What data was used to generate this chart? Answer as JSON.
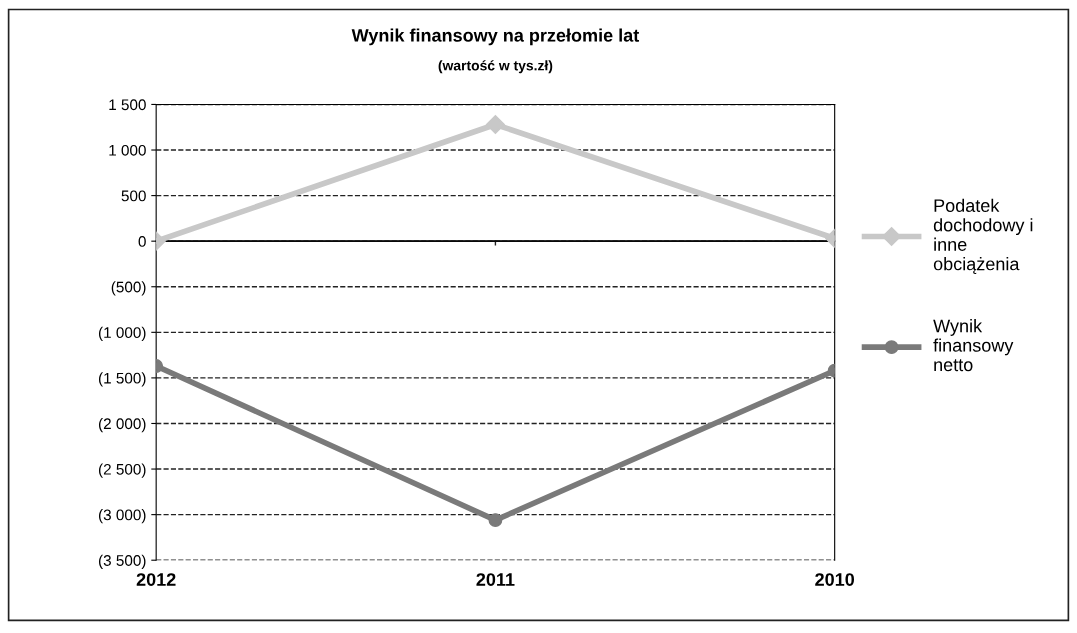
{
  "chart_data": {
    "type": "line",
    "title": "Wynik finansowy na przełomie lat",
    "subtitle": "(wartość w tys.zł)",
    "categories": [
      "2012",
      "2011",
      "2010"
    ],
    "series": [
      {
        "name": "Podatek\ndochodowy i\ninne\nobciążenia",
        "color": "#c8c8c8",
        "values": [
          0,
          1280,
          30
        ],
        "marker": "diamond"
      },
      {
        "name": "Wynik\nfinansowy\nnetto",
        "color": "#7a7a7a",
        "values": [
          -1370,
          -3060,
          -1420
        ],
        "marker": "circle"
      }
    ],
    "ylim": [
      -3500,
      1500
    ],
    "yticks": [
      {
        "value": -3500,
        "label": "(3 500)"
      },
      {
        "value": -3000,
        "label": "(3 000)"
      },
      {
        "value": -2500,
        "label": "(2 500)"
      },
      {
        "value": -2000,
        "label": "(2 000)"
      },
      {
        "value": -1500,
        "label": "(1 500)"
      },
      {
        "value": -1000,
        "label": "(1 000)"
      },
      {
        "value": -500,
        "label": "(500)"
      },
      0,
      500,
      {
        "value": 1000,
        "label": "1 000"
      },
      {
        "value": 1500,
        "label": "1 500"
      }
    ],
    "grid": "y",
    "line_style": "solid",
    "legend": "right"
  }
}
